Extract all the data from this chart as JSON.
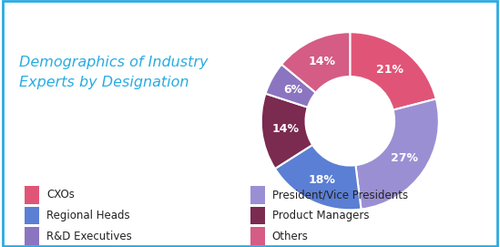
{
  "title": "Demographics of Industry\nExperts by Designation",
  "title_color": "#29ABE2",
  "background_color": "#FFFFFF",
  "border_color": "#29ABE2",
  "slices": [
    {
      "label": "CXOs",
      "value": 21,
      "color": "#E05577"
    },
    {
      "label": "President/Vice Presidents",
      "value": 27,
      "color": "#9B8FD4"
    },
    {
      "label": "Regional Heads",
      "value": 18,
      "color": "#5B7FD4"
    },
    {
      "label": "Product Managers",
      "value": 14,
      "color": "#7B2A50"
    },
    {
      "label": "R&D Executives",
      "value": 6,
      "color": "#8B75C0"
    },
    {
      "label": "Others",
      "value": 14,
      "color": "#D45C85"
    }
  ],
  "label_color": "#FFFFFF",
  "label_fontsize": 9,
  "legend_fontsize": 8.5,
  "startangle": 90
}
